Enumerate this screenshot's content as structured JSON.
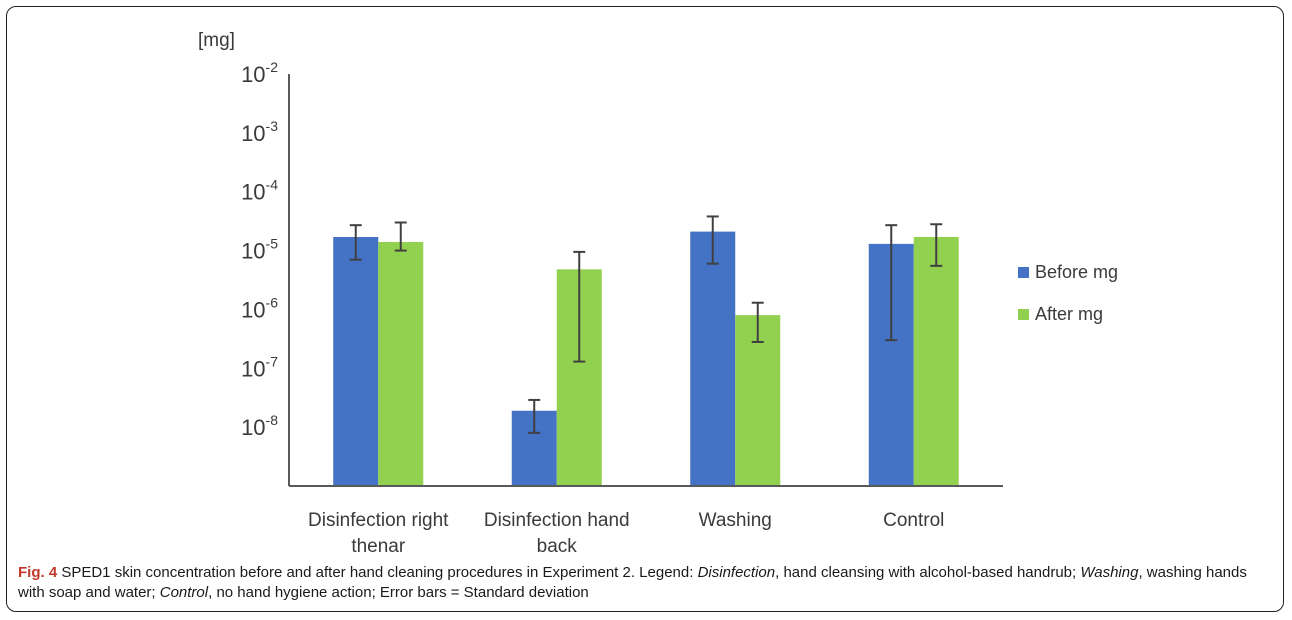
{
  "chart_data": {
    "type": "bar",
    "unit_label": "[mg]",
    "y_scale": "log",
    "ylim": [
      1e-09,
      0.01
    ],
    "y_ticks": [
      {
        "value": 0.01,
        "base": "10",
        "exp": "-2"
      },
      {
        "value": 0.001,
        "base": "10",
        "exp": "-3"
      },
      {
        "value": 0.0001,
        "base": "10",
        "exp": "-4"
      },
      {
        "value": 1e-05,
        "base": "10",
        "exp": "-5"
      },
      {
        "value": 1e-06,
        "base": "10",
        "exp": "-6"
      },
      {
        "value": 1e-07,
        "base": "10",
        "exp": "-7"
      },
      {
        "value": 1e-08,
        "base": "10",
        "exp": "-8"
      }
    ],
    "categories": [
      [
        "Disinfection right",
        "thenar"
      ],
      [
        "Disinfection hand",
        "back"
      ],
      [
        "Washing"
      ],
      [
        "Control"
      ]
    ],
    "series": [
      {
        "name": "Before mg",
        "color": "#4472C4",
        "values": [
          1.7e-05,
          1.9e-08,
          2.1e-05,
          1.3e-05
        ],
        "err_low": [
          7e-06,
          8e-09,
          6e-06,
          3e-07
        ],
        "err_high": [
          2.7e-05,
          2.9e-08,
          3.8e-05,
          2.7e-05
        ]
      },
      {
        "name": "After mg",
        "color": "#92D050",
        "values": [
          1.4e-05,
          4.8e-06,
          8e-07,
          1.7e-05
        ],
        "err_low": [
          1e-05,
          1.3e-07,
          2.8e-07,
          5.5e-06
        ],
        "err_high": [
          3e-05,
          9.5e-06,
          1.3e-06,
          2.8e-05
        ]
      }
    ],
    "legend_position": "right",
    "grid": false
  },
  "caption": {
    "fig_label": "Fig. 4",
    "segments": [
      {
        "text": " SPED1 skin concentration before and after hand cleaning procedures in Experiment 2. Legend: ",
        "italic": false
      },
      {
        "text": "Disinfection",
        "italic": true
      },
      {
        "text": ", hand cleansing with alcohol-based handrub; ",
        "italic": false
      },
      {
        "text": "Washing",
        "italic": true
      },
      {
        "text": ", washing hands with soap and water; ",
        "italic": false
      },
      {
        "text": "Control",
        "italic": true
      },
      {
        "text": ", no hand hygiene action; Error bars = Standard deviation",
        "italic": false
      }
    ]
  }
}
